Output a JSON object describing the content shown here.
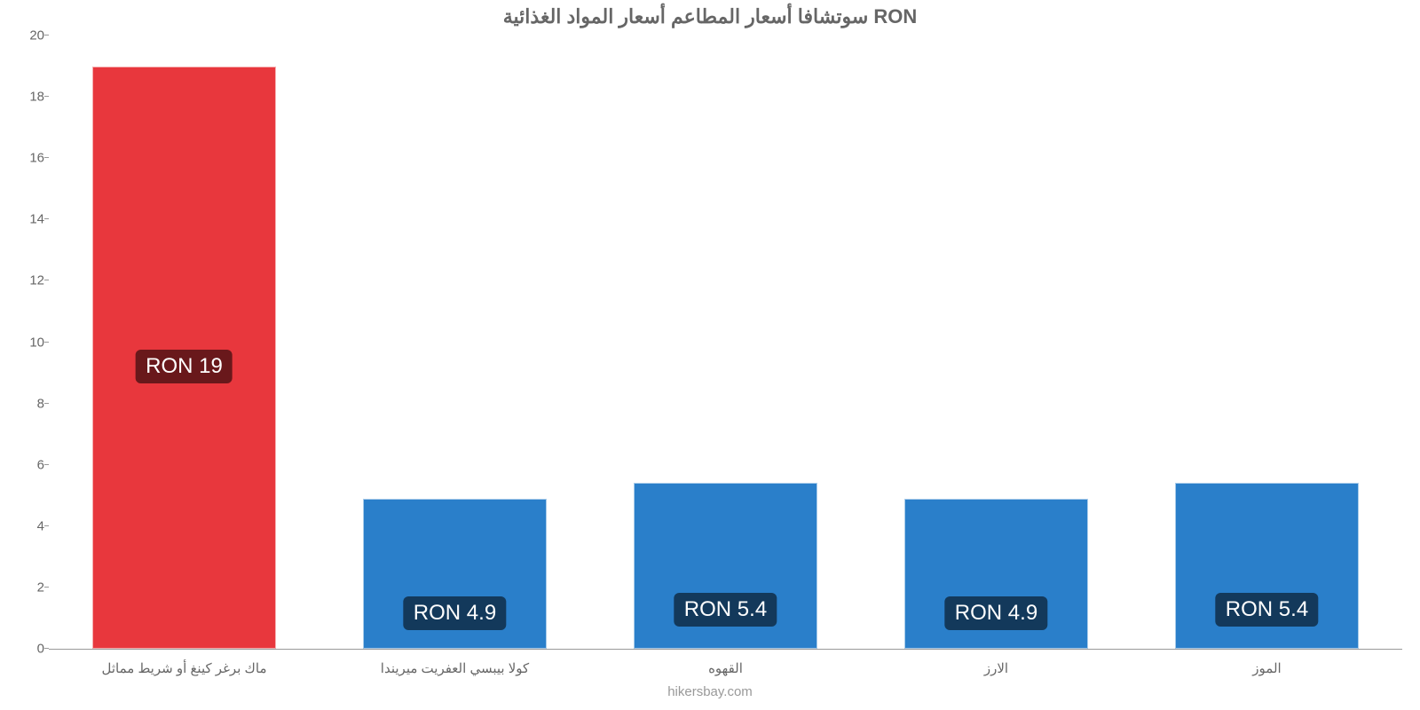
{
  "chart": {
    "type": "bar",
    "title": "سوتشافا أسعار المطاعم أسعار المواد الغذائية RON",
    "title_fontsize": 22,
    "title_color": "#666666",
    "background_color": "#ffffff",
    "ylim": [
      0,
      20
    ],
    "ytick_step": 2,
    "yticks": [
      0,
      2,
      4,
      6,
      8,
      10,
      12,
      14,
      16,
      18,
      20
    ],
    "axis_color": "#999999",
    "tick_label_color": "#666666",
    "tick_label_fontsize": 15,
    "bar_width": 0.68,
    "categories": [
      "ماك برغر كينغ أو شريط مماثل",
      "كولا بيبسي العفريت ميريندا",
      "القهوه",
      "الارز",
      "الموز"
    ],
    "values": [
      19,
      4.9,
      5.4,
      4.9,
      5.4
    ],
    "value_labels": [
      "RON 19",
      "RON 4.9",
      "RON 5.4",
      "RON 4.9",
      "RON 5.4"
    ],
    "bar_colors": [
      "#e8373d",
      "#2a7fca",
      "#2a7fca",
      "#2a7fca",
      "#2a7fca"
    ],
    "value_label_bg": "rgba(0,0,0,0.55)",
    "value_label_color": "#ffffff",
    "value_label_fontsize": 24,
    "attribution": "hikersbay.com",
    "attribution_color": "#999999"
  }
}
